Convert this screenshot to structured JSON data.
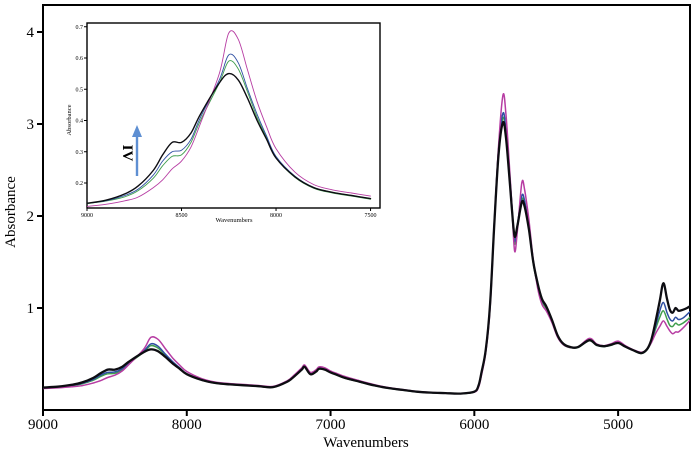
{
  "figure": {
    "background": "#ffffff",
    "border_color": "#000000"
  },
  "chart_data": {
    "type": "line",
    "title": "",
    "xlabel": "Wavenumbers",
    "ylabel": "Absorbance",
    "x_axis_reversed": true,
    "x_range": [
      9000,
      4500
    ],
    "x_ticks": [
      9000,
      8000,
      7000,
      6000,
      5000
    ],
    "y_range": [
      -0.11,
      4.3
    ],
    "y_ticks": [
      4,
      3,
      2,
      1
    ],
    "grid": false,
    "legend": "none",
    "x": [
      9000,
      8900,
      8800,
      8730,
      8650,
      8600,
      8550,
      8500,
      8450,
      8400,
      8300,
      8250,
      8200,
      8150,
      8100,
      8050,
      8000,
      7900,
      7800,
      7700,
      7600,
      7500,
      7400,
      7300,
      7250,
      7200,
      7180,
      7140,
      7100,
      7080,
      7040,
      7000,
      6950,
      6900,
      6800,
      6700,
      6600,
      6500,
      6400,
      6300,
      6200,
      6100,
      6000,
      5970,
      5950,
      5920,
      5890,
      5860,
      5830,
      5800,
      5780,
      5760,
      5740,
      5720,
      5700,
      5670,
      5650,
      5620,
      5590,
      5560,
      5530,
      5500,
      5460,
      5420,
      5380,
      5330,
      5280,
      5200,
      5150,
      5100,
      5050,
      5000,
      4950,
      4900,
      4840,
      4800,
      4770,
      4740,
      4710,
      4685,
      4660,
      4640,
      4620,
      4600,
      4580,
      4550,
      4520,
      4500
    ],
    "series": [
      {
        "name": "green",
        "color": "#3f9e4d",
        "y": [
          0.134,
          0.142,
          0.156,
          0.175,
          0.215,
          0.255,
          0.285,
          0.29,
          0.33,
          0.4,
          0.52,
          0.59,
          0.565,
          0.49,
          0.41,
          0.345,
          0.28,
          0.218,
          0.183,
          0.168,
          0.158,
          0.148,
          0.138,
          0.198,
          0.258,
          0.33,
          0.358,
          0.278,
          0.308,
          0.338,
          0.328,
          0.298,
          0.268,
          0.238,
          0.197,
          0.158,
          0.128,
          0.108,
          0.088,
          0.078,
          0.073,
          0.068,
          0.087,
          0.15,
          0.29,
          0.545,
          1.04,
          1.95,
          2.72,
          3.07,
          2.89,
          2.53,
          2.11,
          1.7,
          1.88,
          2.18,
          2.12,
          1.85,
          1.48,
          1.25,
          1.07,
          0.995,
          0.85,
          0.688,
          0.6,
          0.568,
          0.57,
          0.644,
          0.594,
          0.58,
          0.594,
          0.62,
          0.578,
          0.542,
          0.505,
          0.543,
          0.625,
          0.77,
          0.9,
          0.97,
          0.88,
          0.81,
          0.8,
          0.835,
          0.815,
          0.835,
          0.87,
          0.9
        ]
      },
      {
        "name": "blue",
        "color": "#2f4fa2",
        "y": [
          0.135,
          0.143,
          0.16,
          0.18,
          0.225,
          0.27,
          0.3,
          0.305,
          0.34,
          0.41,
          0.53,
          0.61,
          0.585,
          0.5,
          0.42,
          0.35,
          0.285,
          0.222,
          0.186,
          0.17,
          0.16,
          0.15,
          0.14,
          0.202,
          0.263,
          0.335,
          0.365,
          0.285,
          0.315,
          0.345,
          0.335,
          0.305,
          0.273,
          0.243,
          0.201,
          0.161,
          0.13,
          0.11,
          0.09,
          0.08,
          0.075,
          0.07,
          0.089,
          0.155,
          0.3,
          0.555,
          1.06,
          1.98,
          2.76,
          3.12,
          2.93,
          2.56,
          2.14,
          1.73,
          1.91,
          2.22,
          2.16,
          1.88,
          1.51,
          1.27,
          1.09,
          1.01,
          0.86,
          0.695,
          0.605,
          0.572,
          0.573,
          0.648,
          0.598,
          0.583,
          0.598,
          0.625,
          0.582,
          0.545,
          0.508,
          0.548,
          0.638,
          0.8,
          0.97,
          1.06,
          0.95,
          0.88,
          0.86,
          0.9,
          0.875,
          0.89,
          0.93,
          0.96
        ]
      },
      {
        "name": "magenta",
        "color": "#b73da3",
        "y": [
          0.125,
          0.132,
          0.143,
          0.155,
          0.185,
          0.21,
          0.245,
          0.27,
          0.315,
          0.39,
          0.55,
          0.68,
          0.66,
          0.56,
          0.46,
          0.38,
          0.31,
          0.235,
          0.195,
          0.178,
          0.168,
          0.158,
          0.148,
          0.21,
          0.275,
          0.35,
          0.38,
          0.3,
          0.33,
          0.36,
          0.35,
          0.315,
          0.285,
          0.255,
          0.21,
          0.168,
          0.136,
          0.114,
          0.093,
          0.082,
          0.076,
          0.071,
          0.085,
          0.14,
          0.27,
          0.52,
          1.0,
          1.95,
          2.8,
          3.32,
          3.1,
          2.65,
          2.15,
          1.62,
          1.85,
          2.36,
          2.28,
          1.95,
          1.52,
          1.22,
          1.04,
          0.97,
          0.84,
          0.68,
          0.6,
          0.57,
          0.575,
          0.67,
          0.61,
          0.59,
          0.61,
          0.64,
          0.59,
          0.55,
          0.52,
          0.55,
          0.62,
          0.72,
          0.8,
          0.86,
          0.8,
          0.75,
          0.72,
          0.74,
          0.74,
          0.78,
          0.83,
          0.87
        ]
      },
      {
        "name": "black",
        "color": "#0d0d12",
        "y": [
          0.135,
          0.145,
          0.165,
          0.19,
          0.24,
          0.29,
          0.33,
          0.33,
          0.36,
          0.42,
          0.52,
          0.55,
          0.53,
          0.47,
          0.4,
          0.34,
          0.28,
          0.22,
          0.185,
          0.17,
          0.16,
          0.15,
          0.14,
          0.2,
          0.26,
          0.33,
          0.36,
          0.28,
          0.31,
          0.34,
          0.33,
          0.3,
          0.27,
          0.24,
          0.2,
          0.16,
          0.13,
          0.11,
          0.09,
          0.08,
          0.075,
          0.07,
          0.09,
          0.16,
          0.3,
          0.55,
          1.05,
          1.95,
          2.7,
          3.02,
          2.85,
          2.5,
          2.1,
          1.78,
          1.9,
          2.15,
          2.1,
          1.85,
          1.5,
          1.27,
          1.1,
          1.02,
          0.87,
          0.7,
          0.61,
          0.575,
          0.575,
          0.65,
          0.6,
          0.585,
          0.6,
          0.62,
          0.58,
          0.545,
          0.51,
          0.55,
          0.65,
          0.85,
          1.08,
          1.27,
          1.1,
          0.98,
          0.95,
          1.0,
          0.97,
          0.98,
          1.0,
          1.02
        ]
      }
    ],
    "peak_features": {
      "shoulder_peak": 8550,
      "first_overtone_peak": 8250,
      "double_bump": [
        7180,
        7080
      ],
      "major_peak_1": 5800,
      "major_peak_2": 5670,
      "right_end_spike": 4685
    },
    "inset": {
      "xlabel": "Wavenumbers",
      "ylabel": "Absorbance",
      "x_range": [
        9000,
        7450
      ],
      "x_ticks": [
        9000,
        8500,
        8000,
        7500
      ],
      "y_range": [
        0.12,
        0.712
      ],
      "y_ticks": [
        0.7,
        0.6,
        0.5,
        0.4,
        0.3,
        0.2
      ],
      "annotation": {
        "label": "IV",
        "arrow_direction": "up",
        "arrow_color": "#5e8fd2"
      }
    }
  }
}
